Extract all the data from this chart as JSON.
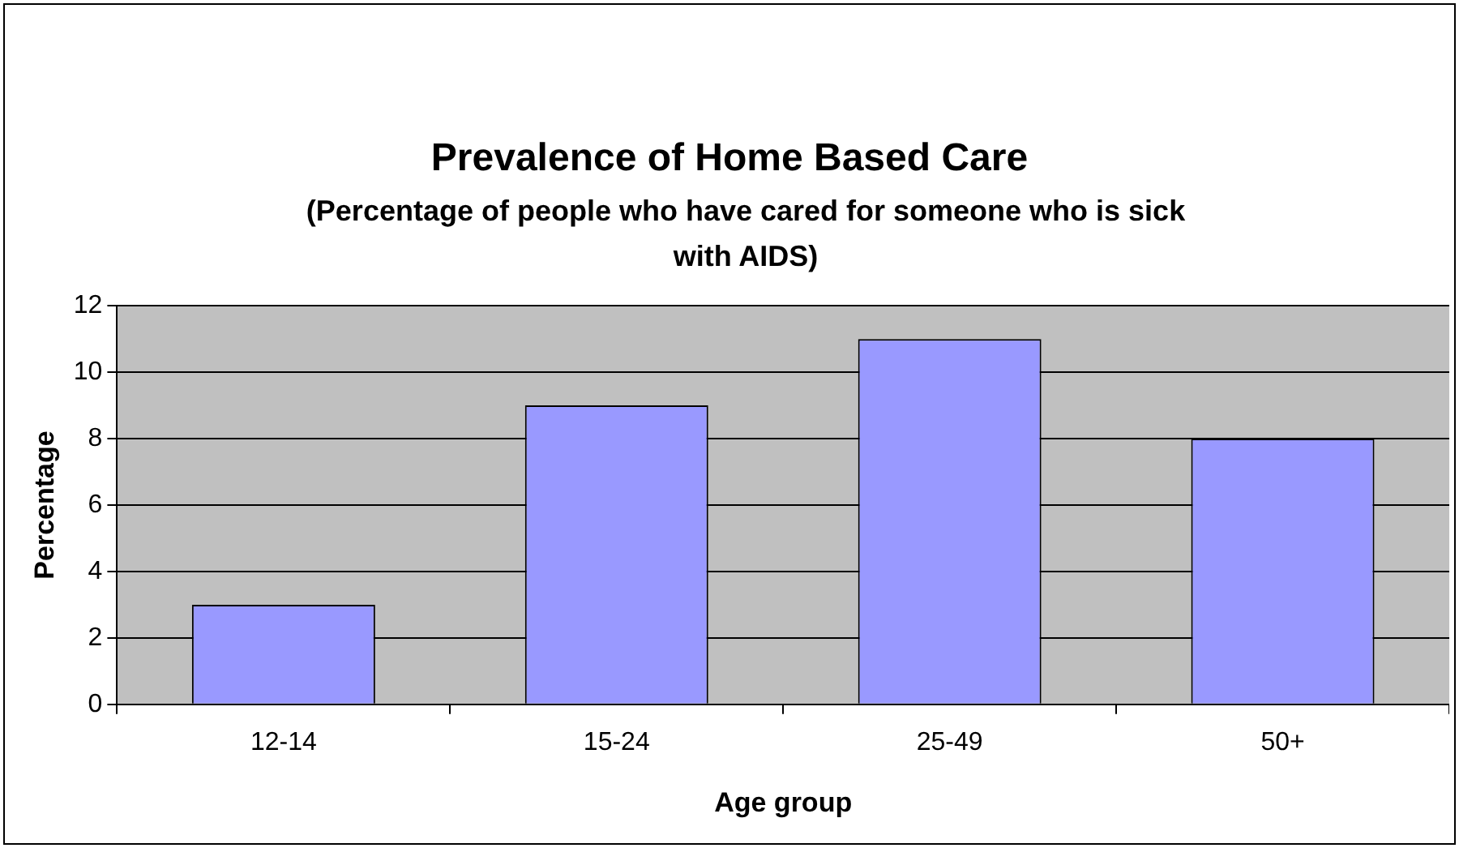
{
  "chart_data": {
    "type": "bar",
    "title": "Prevalence of Home Based Care",
    "subtitle": "(Percentage of people who have cared for someone who is sick with AIDS)",
    "xlabel": "Age group",
    "ylabel": "Percentage",
    "categories": [
      "12-14",
      "15-24",
      "25-49",
      "50+"
    ],
    "values": [
      3,
      9,
      11,
      8
    ],
    "color": "#9999ff",
    "ylim": [
      0,
      12
    ],
    "yticks": [
      0,
      2,
      4,
      6,
      8,
      10,
      12
    ],
    "grid": "y",
    "legend": false
  }
}
